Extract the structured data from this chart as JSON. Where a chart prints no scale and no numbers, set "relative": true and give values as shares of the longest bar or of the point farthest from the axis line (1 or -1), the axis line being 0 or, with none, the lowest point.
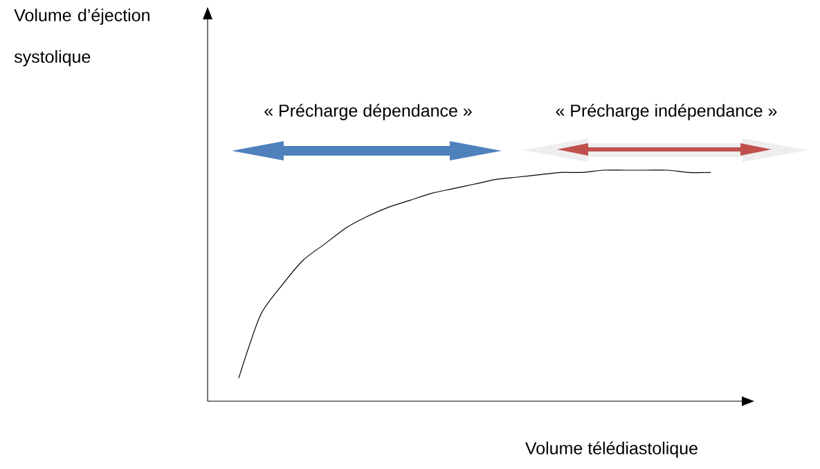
{
  "chart_data": {
    "type": "line",
    "relative": true,
    "color": "#000000",
    "xlabel": "Volume télédiastolique",
    "ylabel": "Volume d’éjection systolique",
    "annotations": [
      "« Précharge dépendance »",
      "« Précharge indépendance »"
    ],
    "categories": [
      null,
      null,
      null,
      null,
      null,
      null,
      null,
      null,
      null,
      null,
      null,
      null,
      null,
      null,
      null,
      null,
      null,
      null,
      null,
      null,
      null,
      null,
      null
    ],
    "values": [
      0.1,
      0.37,
      0.5,
      0.61,
      0.68,
      0.75,
      0.8,
      0.84,
      0.87,
      0.9,
      0.92,
      0.94,
      0.96,
      0.97,
      0.98,
      0.99,
      0.99,
      1,
      1,
      1,
      1,
      0.99,
      0.99
    ]
  }
}
